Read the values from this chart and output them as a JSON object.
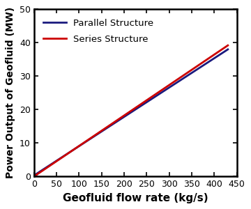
{
  "title": "",
  "xlabel": "Geofluid flow rate (kg/s)",
  "ylabel": "Power Output of Geofluid (MW)",
  "xlim": [
    0,
    450
  ],
  "ylim": [
    0,
    50
  ],
  "xticks": [
    0,
    50,
    100,
    150,
    200,
    250,
    300,
    350,
    400,
    450
  ],
  "yticks": [
    0,
    10,
    20,
    30,
    40,
    50
  ],
  "parallel": {
    "x_start": 0,
    "x_end": 430,
    "y_start": 0.3,
    "y_end": 38.0,
    "color": "#1a1a7e",
    "linewidth": 2.0,
    "label": "Parallel Structure"
  },
  "series": {
    "x_start": 0,
    "x_end": 430,
    "y_start": 0.0,
    "y_end": 39.2,
    "color": "#cc0000",
    "linewidth": 2.0,
    "label": "Series Structure"
  },
  "legend_loc": "upper left",
  "legend_fontsize": 9.5,
  "xlabel_fontsize": 11,
  "ylabel_fontsize": 10,
  "tick_fontsize": 9,
  "axes_linewidth": 1.8,
  "background_color": "#ffffff",
  "figsize": [
    3.6,
    3.0
  ],
  "dpi": 100
}
